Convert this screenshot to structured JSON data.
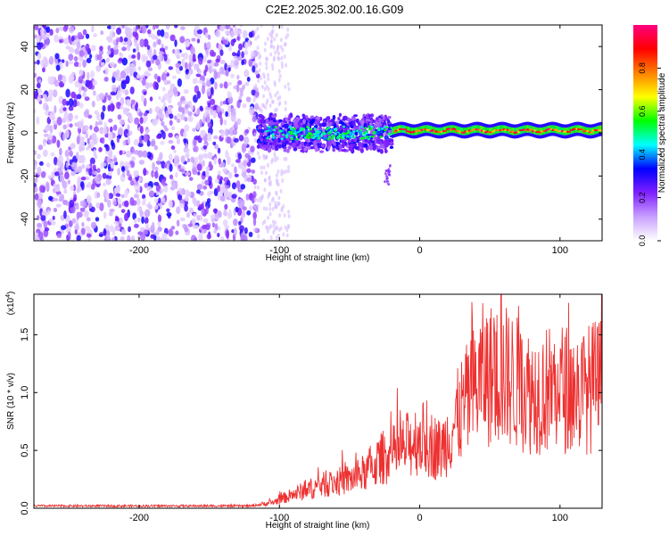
{
  "title": "C2E2.2025.302.00.16.G09",
  "chart_data": [
    {
      "type": "heatmap",
      "xlabel": "Height of straight line (km)",
      "ylabel": "Frequency (Hz)",
      "xlim": [
        -275,
        130
      ],
      "ylim": [
        -50,
        50
      ],
      "xticks": [
        -200,
        -100,
        0,
        100
      ],
      "yticks": [
        -40,
        -20,
        0,
        20,
        40
      ],
      "colorbar": {
        "label": "Normalized spectral amplitude",
        "range": [
          0,
          1
        ],
        "ticks": [
          "0.0",
          "0.2",
          "0.4",
          "0.6",
          "0.8"
        ],
        "ticks_values": [
          0,
          0.2,
          0.4,
          0.6,
          0.8
        ],
        "colors": [
          "#ffffff",
          "#c8a0ff",
          "#8020ff",
          "#0000ff",
          "#00ffff",
          "#00ff00",
          "#ffff00",
          "#ff8000",
          "#ff0000",
          "#ff0080"
        ]
      },
      "regions": [
        {
          "x": [
            -275,
            -115
          ],
          "freq": [
            -50,
            50
          ],
          "amplitude": 0.15,
          "desc": "broadband noise"
        },
        {
          "x": [
            -115,
            -20
          ],
          "freq": [
            -8,
            8
          ],
          "amplitude": 0.35
        },
        {
          "x": [
            -20,
            130
          ],
          "freq": [
            -2,
            3
          ],
          "amplitude": 0.85
        },
        {
          "x": [
            -25,
            -22
          ],
          "freq": [
            -25,
            -18
          ],
          "amplitude": 0.15
        }
      ]
    },
    {
      "type": "line",
      "xlabel": "Height of straight line (km)",
      "ylabel": "SNR (10 * v/v)",
      "scale_label": "(x10",
      "scale_exp": "4",
      "scale_suffix": ")",
      "xlim": [
        -275,
        130
      ],
      "ylim": [
        0,
        1.85
      ],
      "xticks": [
        -200,
        -100,
        0,
        100
      ],
      "yticks": [
        "0.0",
        "0.5",
        "1.0",
        "1.5"
      ],
      "yticks_values": [
        0,
        0.5,
        1.0,
        1.5
      ],
      "line_color": "#ee3030",
      "envelope": [
        {
          "x": -275,
          "y": 0.02
        },
        {
          "x": -120,
          "y": 0.02
        },
        {
          "x": -105,
          "y": 0.05
        },
        {
          "x": -90,
          "y": 0.12
        },
        {
          "x": -70,
          "y": 0.2
        },
        {
          "x": -50,
          "y": 0.25
        },
        {
          "x": -40,
          "y": 0.3
        },
        {
          "x": -25,
          "y": 0.45
        },
        {
          "x": -15,
          "y": 0.48
        },
        {
          "x": -8,
          "y": 0.55
        },
        {
          "x": 0,
          "y": 0.62
        },
        {
          "x": 15,
          "y": 0.5
        },
        {
          "x": 30,
          "y": 0.85
        },
        {
          "x": 45,
          "y": 1.15
        },
        {
          "x": 60,
          "y": 1.15
        },
        {
          "x": 80,
          "y": 1.0
        },
        {
          "x": 100,
          "y": 1.05
        },
        {
          "x": 115,
          "y": 1.0
        },
        {
          "x": 130,
          "y": 1.1
        }
      ],
      "peak": {
        "x": 58,
        "y": 1.85
      }
    }
  ]
}
